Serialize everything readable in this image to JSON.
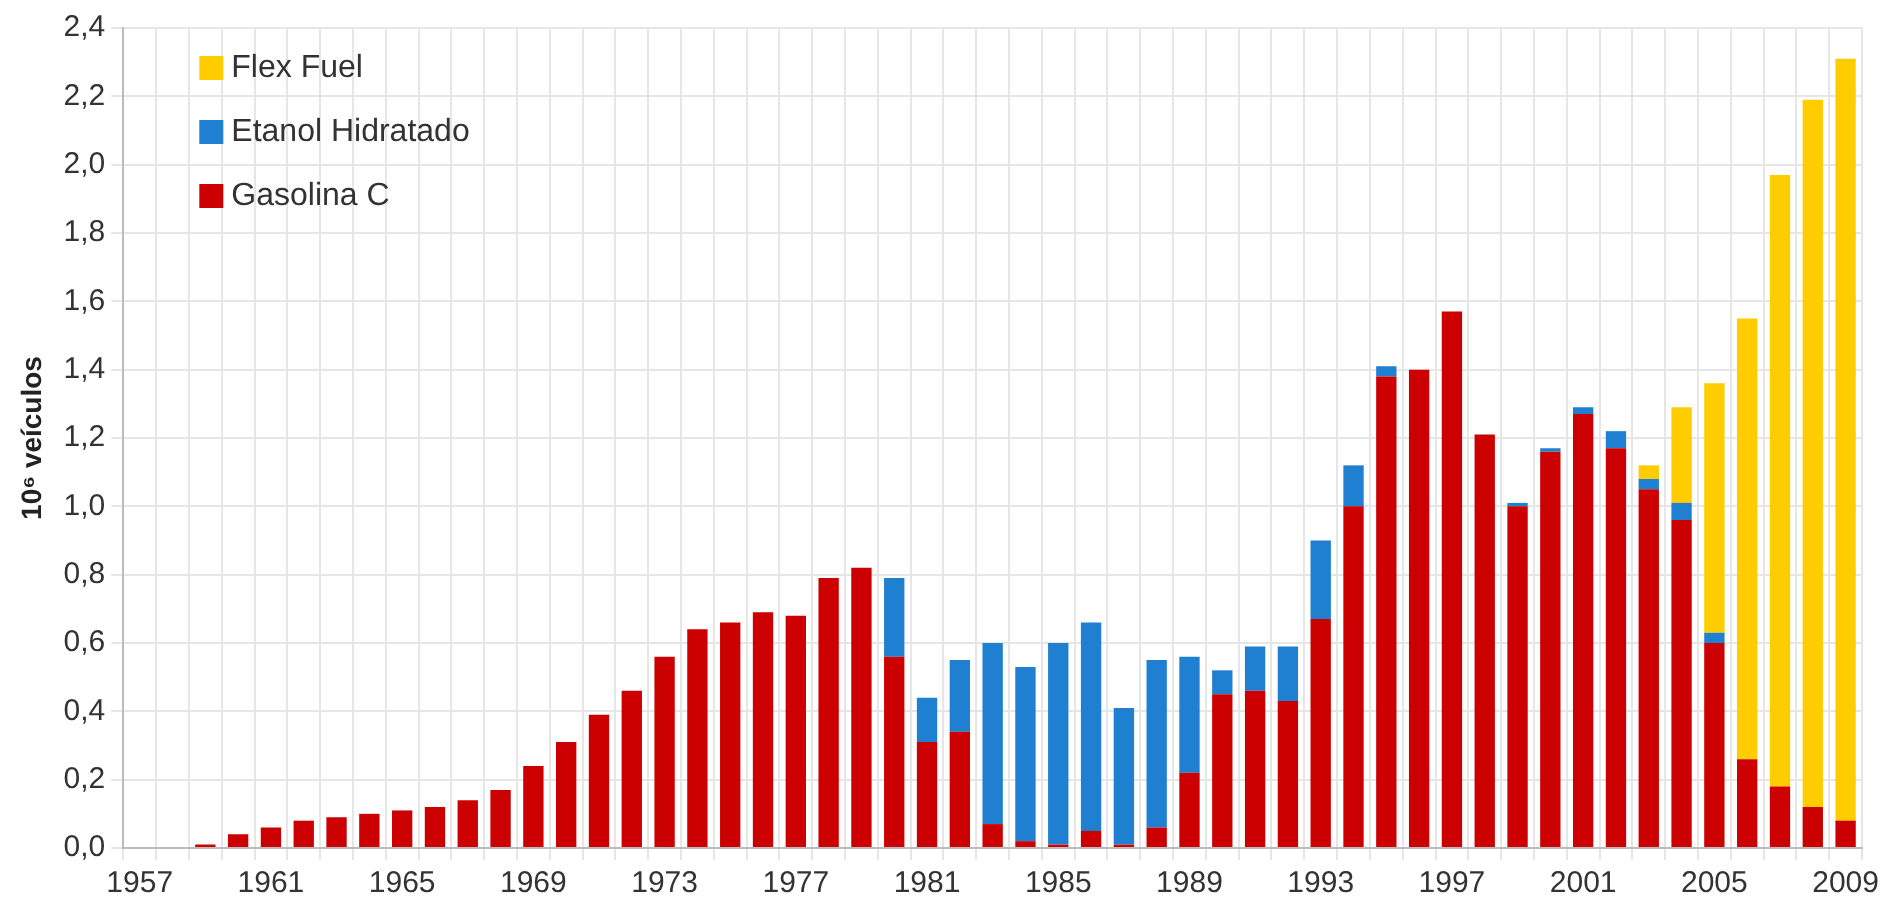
{
  "chart_data": {
    "type": "bar",
    "stacked": true,
    "ylabel": "10⁶ veículos",
    "categories": [
      "1957",
      null,
      null,
      null,
      "1961",
      null,
      null,
      null,
      "1965",
      null,
      null,
      null,
      "1969",
      null,
      null,
      null,
      "1973",
      null,
      null,
      null,
      "1977",
      null,
      null,
      null,
      "1981",
      null,
      null,
      null,
      "1985",
      null,
      null,
      null,
      "1989",
      null,
      null,
      null,
      "1993",
      null,
      null,
      null,
      "1997",
      null,
      null,
      null,
      "2001",
      null,
      null,
      null,
      "2005",
      null,
      null,
      null,
      "2009"
    ],
    "series": [
      {
        "name": "Gasolina C",
        "color": "#cc0000",
        "values": [
          0,
          0,
          0.01,
          0.04,
          0.06,
          0.08,
          0.09,
          0.1,
          0.11,
          0.12,
          0.14,
          0.17,
          0.24,
          0.31,
          0.39,
          0.46,
          0.56,
          0.64,
          0.66,
          0.69,
          0.68,
          0.79,
          0.82,
          0.56,
          0.31,
          0.34,
          0.07,
          0.02,
          0.01,
          0.05,
          0.01,
          0.06,
          0.22,
          0.45,
          0.46,
          0.43,
          0.67,
          1.0,
          1.38,
          1.4,
          1.57,
          1.21,
          1.0,
          1.16,
          1.27,
          1.17,
          1.05,
          0.96,
          0.6,
          0.26,
          0.18,
          0.12,
          0.08
        ]
      },
      {
        "name": "Etanol Hidratado",
        "color": "#1f7fd0",
        "values": [
          0,
          0,
          0,
          0,
          0,
          0,
          0,
          0,
          0,
          0,
          0,
          0,
          0,
          0,
          0,
          0,
          0,
          0,
          0,
          0,
          0,
          0,
          0,
          0.23,
          0.13,
          0.21,
          0.53,
          0.51,
          0.59,
          0.61,
          0.4,
          0.49,
          0.34,
          0.07,
          0.13,
          0.16,
          0.23,
          0.12,
          0.03,
          0,
          0,
          0,
          0.01,
          0.01,
          0.02,
          0.05,
          0.03,
          0.05,
          0.03,
          0,
          0,
          0,
          0
        ]
      },
      {
        "name": "Flex Fuel",
        "color": "#ffcc00",
        "values": [
          0,
          0,
          0,
          0,
          0,
          0,
          0,
          0,
          0,
          0,
          0,
          0,
          0,
          0,
          0,
          0,
          0,
          0,
          0,
          0,
          0,
          0,
          0,
          0,
          0,
          0,
          0,
          0,
          0,
          0,
          0,
          0,
          0,
          0,
          0,
          0,
          0,
          0,
          0,
          0,
          0,
          0,
          0,
          0,
          0,
          0,
          0.04,
          0.28,
          0.73,
          1.29,
          1.79,
          2.07,
          2.23
        ]
      }
    ],
    "ylim": [
      0,
      2.4
    ],
    "yticks": [
      {
        "value": 0,
        "label": "0,0"
      },
      {
        "value": 0.2,
        "label": "0,2"
      },
      {
        "value": 0.4,
        "label": "0,4"
      },
      {
        "value": 0.6,
        "label": "0,6"
      },
      {
        "value": 0.8,
        "label": "0,8"
      },
      {
        "value": 1.0,
        "label": "1,0"
      },
      {
        "value": 1.2,
        "label": "1,2"
      },
      {
        "value": 1.4,
        "label": "1,4"
      },
      {
        "value": 1.6,
        "label": "1,6"
      },
      {
        "value": 1.8,
        "label": "1,8"
      },
      {
        "value": 2.0,
        "label": "2,0"
      },
      {
        "value": 2.2,
        "label": "2,2"
      },
      {
        "value": 2.4,
        "label": "2,4"
      }
    ],
    "grid": true,
    "legend": "top left"
  }
}
